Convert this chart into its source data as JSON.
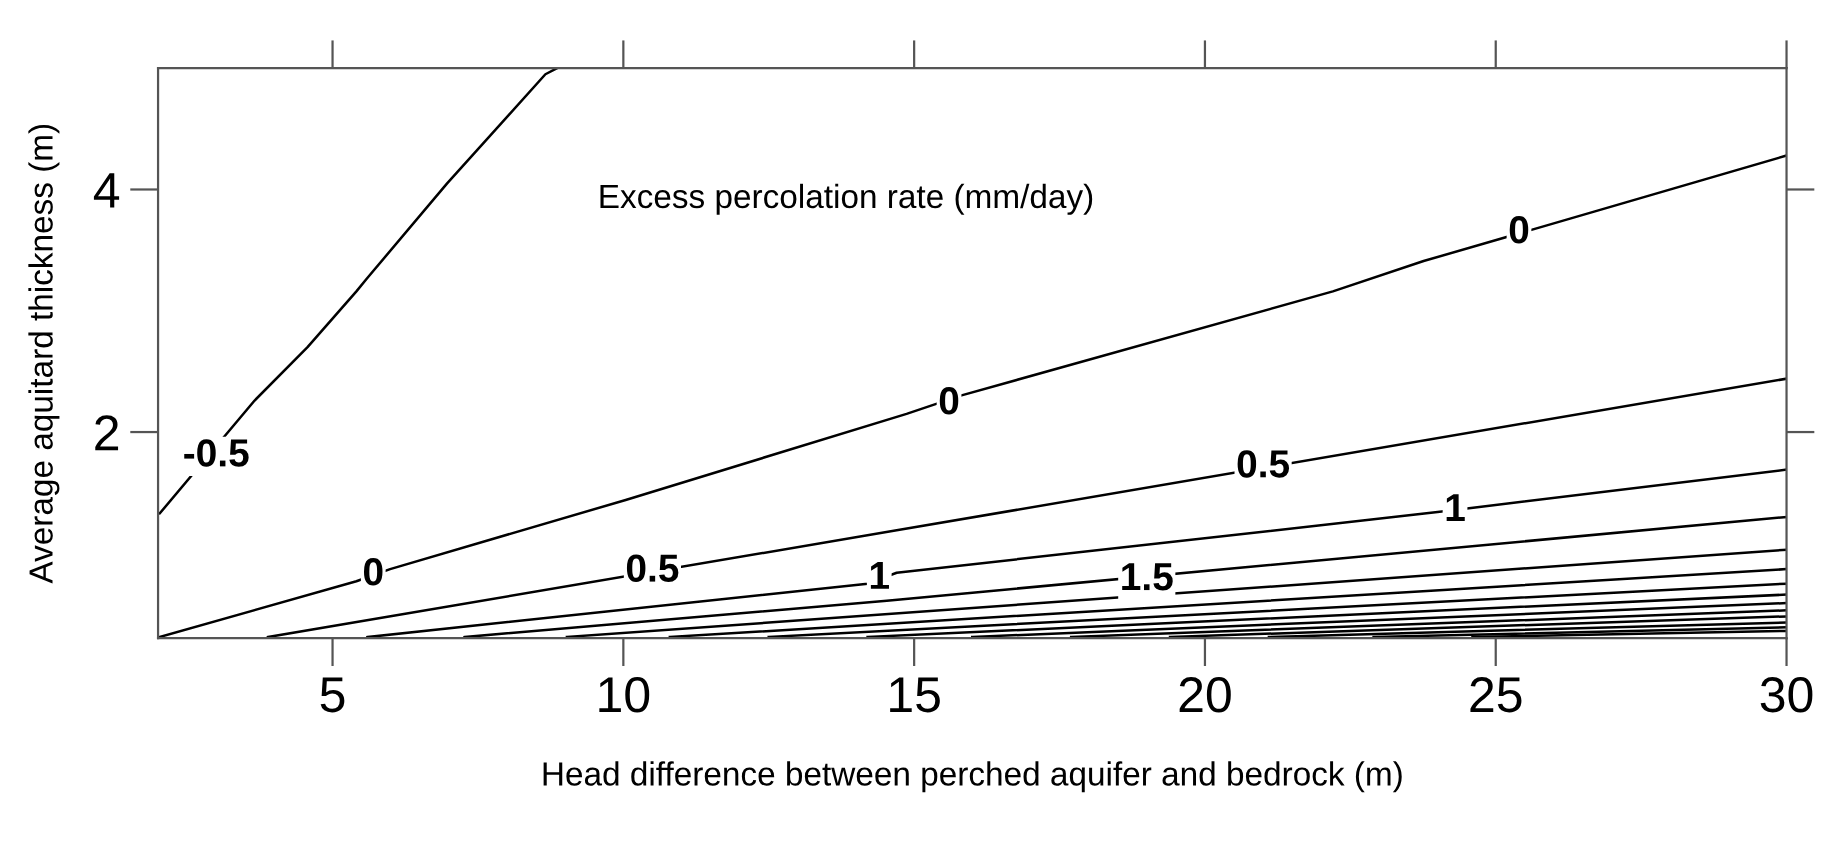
{
  "chart_data": {
    "type": "line",
    "xlabel": "Head difference between perched aquifer and bedrock (m)",
    "ylabel": "Average aquitard thickness (m)",
    "xlim": [
      2,
      30
    ],
    "xticks": [
      5,
      10,
      15,
      20,
      25,
      30
    ],
    "ylim": [
      0.3,
      5
    ],
    "yticks": [
      2,
      4
    ],
    "grid": false,
    "marker": "none",
    "line_style": "solid",
    "series": [
      {
        "color": "#000000",
        "x": [
          2.03,
          3.66,
          4.57,
          5.41,
          5.58,
          6.97,
          8.66,
          8.86
        ],
        "values": [
          1.33,
          2.26,
          2.7,
          3.16,
          3.26,
          4.05,
          4.95,
          5.0
        ]
      },
      {
        "color": "#000000",
        "x": [
          2.03,
          5.41,
          5.99,
          10.04,
          14.87,
          15.8,
          22.2,
          23.76,
          25.85,
          30
        ],
        "values": [
          0.31,
          0.77,
          0.87,
          1.44,
          2.15,
          2.3,
          3.16,
          3.41,
          3.7,
          4.28
        ]
      },
      {
        "color": "#000000",
        "x": [
          3.89,
          14.7,
          30
        ],
        "values": [
          0.31,
          1.19,
          2.44
        ]
      },
      {
        "color": "#000000",
        "x": [
          5.6,
          14.2,
          14.7,
          24.0,
          30
        ],
        "values": [
          0.31,
          0.75,
          0.84,
          1.34,
          1.69
        ]
      },
      {
        "color": "#000000",
        "x": [
          7.27,
          14.53,
          30
        ],
        "values": [
          0.31,
          0.61,
          1.3
        ]
      },
      {
        "color": "#000000",
        "x": [
          9.03,
          30
        ],
        "values": [
          0.31,
          1.03
        ]
      },
      {
        "color": "#000000",
        "x": [
          10.8,
          30
        ],
        "values": [
          0.31,
          0.87
        ]
      },
      {
        "color": "#000000",
        "x": [
          12.5,
          30
        ],
        "values": [
          0.31,
          0.75
        ]
      },
      {
        "color": "#000000",
        "x": [
          14.2,
          30
        ],
        "values": [
          0.31,
          0.66
        ]
      },
      {
        "color": "#000000",
        "x": [
          16.0,
          30
        ],
        "values": [
          0.31,
          0.59
        ]
      },
      {
        "color": "#000000",
        "x": [
          17.7,
          30
        ],
        "values": [
          0.31,
          0.53
        ]
      },
      {
        "color": "#000000",
        "x": [
          19.4,
          30
        ],
        "values": [
          0.31,
          0.48
        ]
      },
      {
        "color": "#000000",
        "x": [
          21.1,
          30
        ],
        "values": [
          0.31,
          0.43
        ]
      },
      {
        "color": "#000000",
        "x": [
          22.9,
          30
        ],
        "values": [
          0.31,
          0.39
        ]
      },
      {
        "color": "#000000",
        "x": [
          24.6,
          30
        ],
        "values": [
          0.31,
          0.36
        ]
      }
    ],
    "annotations": [
      "Excess percolation rate (mm/day)",
      {
        "text": "-0.5",
        "x": 3.0,
        "y": 1.8
      },
      {
        "text": "0",
        "x": 5.7,
        "y": 0.82
      },
      {
        "text": "0",
        "x": 15.6,
        "y": 2.23
      },
      {
        "text": "0",
        "x": 25.4,
        "y": 3.64
      },
      {
        "text": "0.5",
        "x": 10.5,
        "y": 0.85
      },
      {
        "text": "0.5",
        "x": 21.0,
        "y": 1.71
      },
      {
        "text": "1",
        "x": 14.4,
        "y": 0.79
      },
      {
        "text": "1",
        "x": 24.3,
        "y": 1.35
      },
      {
        "text": "1.5",
        "x": 19.0,
        "y": 0.78
      }
    ]
  }
}
